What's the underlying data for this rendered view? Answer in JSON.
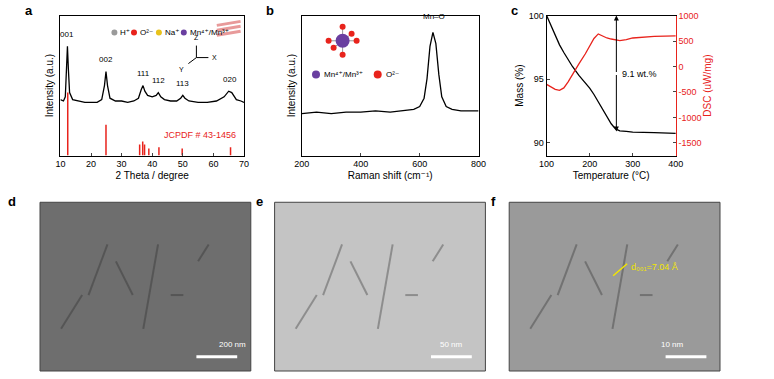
{
  "chart_data": [
    {
      "panel": "a",
      "type": "line",
      "x_label": "2 Theta / degree",
      "y_label": "Intensity (a.u.)",
      "xlim": [
        10,
        70
      ],
      "xticks": [
        10,
        20,
        30,
        40,
        50,
        60,
        70
      ],
      "ylim": [
        0,
        100
      ],
      "tick_labels": "x",
      "grid": false,
      "series": [
        {
          "color": "#000000",
          "x": [
            10,
            11,
            11.6,
            12,
            12.3,
            12.6,
            13,
            14,
            16,
            18,
            20,
            22,
            23.5,
            24.4,
            24.9,
            25.4,
            26.2,
            28,
            30,
            32,
            34,
            35.5,
            36.4,
            37,
            37.6,
            38.5,
            40,
            41.3,
            42,
            42.8,
            44,
            46,
            48,
            49.3,
            50,
            50.7,
            52,
            55,
            58,
            61,
            63.5,
            65,
            66,
            67.5,
            69,
            70
          ],
          "values": [
            40,
            39,
            42,
            60,
            78,
            62,
            45,
            40,
            39,
            38,
            38,
            38,
            40,
            50,
            60,
            50,
            41,
            39,
            39,
            38,
            39,
            41,
            47,
            50,
            46,
            43,
            42,
            43,
            45,
            42,
            40,
            39,
            39,
            41,
            43,
            41,
            39,
            38,
            38,
            39,
            42,
            46,
            45,
            40,
            39,
            38
          ]
        },
        {
          "name": "JCPDF # 43-1456",
          "type": "stem",
          "color": "#e8231c",
          "x": [
            12.4,
            24.9,
            35.9,
            36.9,
            37.5,
            38.9,
            42.2,
            49.8,
            65.6
          ],
          "values": [
            45,
            22,
            8,
            10,
            8,
            5,
            6,
            5,
            6
          ]
        }
      ],
      "annotations": [
        {
          "text": "001",
          "x": 12.3,
          "y": 82
        },
        {
          "text": "002",
          "x": 25,
          "y": 64
        },
        {
          "text": "111",
          "x": 37,
          "y": 54
        },
        {
          "text": "112",
          "x": 42.2,
          "y": 49
        },
        {
          "text": "113",
          "x": 50,
          "y": 47
        },
        {
          "text": "020",
          "x": 65.5,
          "y": 50
        }
      ],
      "inset": {
        "labels": [
          "H⁺",
          "O²⁻",
          "Na⁺",
          "Mn⁴⁺/Mn³⁺"
        ],
        "colors": [
          "#9a9a9a",
          "#e8231c",
          "#e8c21c",
          "#6a3fa0"
        ],
        "axes": [
          "Z",
          "Y",
          "X"
        ]
      }
    },
    {
      "panel": "b",
      "type": "line",
      "x_label": "Raman shift (cm⁻¹)",
      "y_label": "Intensity (a.u.)",
      "xlim": [
        200,
        800
      ],
      "xticks": [
        200,
        400,
        600,
        800
      ],
      "ylim": [
        0,
        100
      ],
      "tick_labels": "x",
      "grid": false,
      "series": [
        {
          "color": "#000000",
          "x": [
            200,
            250,
            300,
            350,
            400,
            450,
            500,
            550,
            580,
            600,
            615,
            625,
            635,
            645,
            655,
            665,
            675,
            690,
            710,
            740,
            770,
            800
          ],
          "values": [
            30,
            31,
            30,
            31,
            31,
            32,
            31,
            32,
            33,
            35,
            41,
            55,
            78,
            88,
            80,
            58,
            42,
            35,
            33,
            32,
            32,
            32
          ]
        }
      ],
      "annotations": [
        {
          "text": "Mn–O",
          "x": 648,
          "y": 95
        }
      ],
      "inset": {
        "labels": [
          "Mn⁴⁺/Mn³⁺",
          "O²⁻"
        ],
        "colors": [
          "#6a3fa0",
          "#e8231c"
        ]
      }
    },
    {
      "panel": "c",
      "type": "line",
      "x_label": "Temperature (°C)",
      "y_label": "Mass (%)",
      "y2_label": "DSC (uW/mg)",
      "xlim": [
        100,
        400
      ],
      "xticks": [
        100,
        200,
        300,
        400
      ],
      "ylim": [
        89,
        100
      ],
      "yticks": [
        90,
        95,
        100
      ],
      "y2lim": [
        -1750,
        1000
      ],
      "y2ticks": [
        -1500,
        -1000,
        -500,
        0,
        500,
        1000
      ],
      "grid": false,
      "series": [
        {
          "color": "#000000",
          "x": [
            100,
            110,
            120,
            130,
            140,
            150,
            160,
            175,
            190,
            200,
            210,
            220,
            230,
            240,
            250,
            260,
            270,
            285,
            300,
            350,
            400
          ],
          "values": [
            100,
            99.2,
            98.4,
            97.7,
            97.1,
            96.5,
            96.0,
            95.3,
            94.7,
            94.3,
            93.8,
            93.2,
            92.6,
            92.0,
            91.5,
            91.1,
            90.95,
            90.9,
            90.85,
            90.8,
            90.75
          ]
        },
        {
          "color": "#e8231c",
          "axis": "y2",
          "x": [
            100,
            110,
            120,
            130,
            140,
            150,
            160,
            175,
            190,
            200,
            210,
            220,
            230,
            240,
            250,
            260,
            270,
            285,
            300,
            350,
            400
          ],
          "values": [
            -350,
            -400,
            -450,
            -470,
            -420,
            -300,
            -150,
            50,
            250,
            400,
            550,
            640,
            600,
            560,
            540,
            520,
            510,
            530,
            560,
            590,
            600
          ]
        }
      ],
      "annotations": [
        {
          "text": "9.1 wt.%",
          "x": 262,
          "y_span": [
            100,
            90.9
          ]
        }
      ]
    }
  ],
  "images": [
    {
      "panel": "d",
      "scale_bar": "200 nm"
    },
    {
      "panel": "e",
      "scale_bar": "50 nm"
    },
    {
      "panel": "f",
      "scale_bar": "10 nm",
      "label": "d₀₀₁=7.04 Å"
    }
  ]
}
